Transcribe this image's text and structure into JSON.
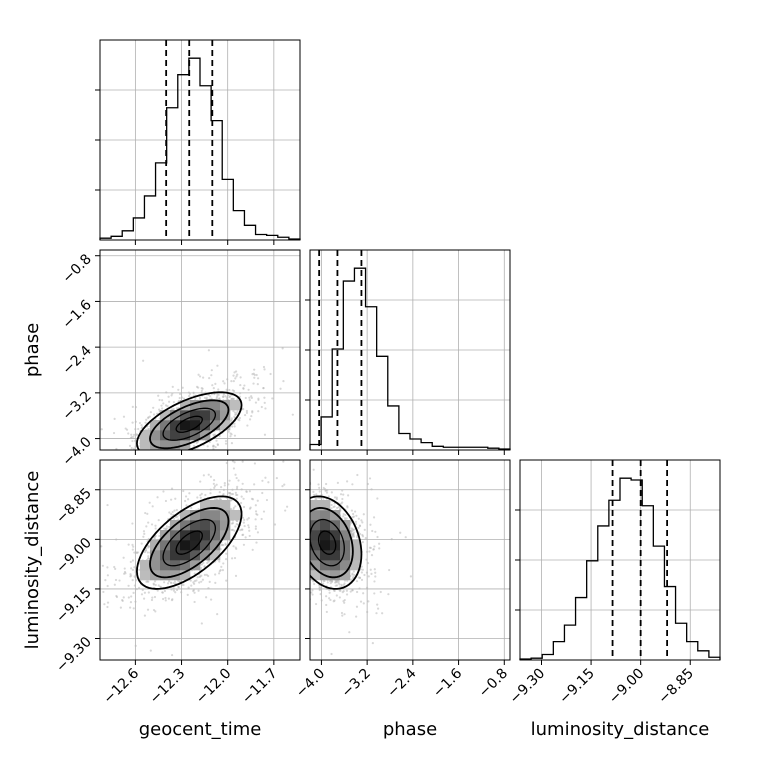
{
  "chart_data": {
    "type": "corner",
    "grid": true,
    "parameters": [
      {
        "name": "geocent_time",
        "range": [
          -12.83,
          -11.53
        ],
        "ticks": [
          -12.6,
          -12.3,
          -12.0,
          -11.7
        ],
        "tick_labels": [
          "−12.6",
          "−12.3",
          "−12.0",
          "−11.7"
        ],
        "quantiles": [
          -12.4,
          -12.25,
          -12.1
        ],
        "histogram": [
          0.01,
          0.02,
          0.05,
          0.12,
          0.24,
          0.42,
          0.72,
          0.9,
          0.99,
          0.84,
          0.65,
          0.33,
          0.16,
          0.08,
          0.03,
          0.025,
          0.015,
          0.005
        ]
      },
      {
        "name": "phase",
        "range": [
          -4.2,
          -0.7
        ],
        "ticks": [
          -4.0,
          -3.2,
          -2.4,
          -1.6,
          -0.8
        ],
        "tick_labels": [
          "−4.0",
          "−3.2",
          "−2.4",
          "−1.6",
          "−0.8"
        ],
        "quantiles": [
          -4.04,
          -3.72,
          -3.3
        ],
        "histogram": [
          0.03,
          0.18,
          0.55,
          0.92,
          0.99,
          0.78,
          0.51,
          0.24,
          0.09,
          0.06,
          0.04,
          0.02,
          0.015,
          0.015,
          0.015,
          0.015,
          0.01,
          0.005
        ]
      },
      {
        "name": "luminosity_distance",
        "range": [
          -9.365,
          -8.76
        ],
        "ticks": [
          -9.3,
          -9.15,
          -9.0,
          -8.85
        ],
        "tick_labels": [
          "−9.30",
          "−9.15",
          "−9.00",
          "−8.85"
        ],
        "quantiles": [
          -9.085,
          -9.0,
          -8.92
        ],
        "histogram": [
          0.005,
          0.01,
          0.03,
          0.1,
          0.19,
          0.34,
          0.54,
          0.73,
          0.87,
          0.99,
          0.98,
          0.84,
          0.62,
          0.4,
          0.2,
          0.1,
          0.05,
          0.015
        ]
      }
    ],
    "pairs": [
      {
        "x": 0,
        "y": 1,
        "mean": [
          -12.25,
          -3.75
        ],
        "std": [
          0.17,
          0.28
        ],
        "corr": 0.6
      },
      {
        "x": 0,
        "y": 2,
        "mean": [
          -12.25,
          -9.01
        ],
        "std": [
          0.17,
          0.07
        ],
        "corr": 0.62
      },
      {
        "x": 1,
        "y": 2,
        "mean": [
          -3.9,
          -9.01
        ],
        "std": [
          0.3,
          0.07
        ],
        "corr": -0.25
      }
    ],
    "contour_levels": [
      0.5,
      1.0,
      1.5,
      2.0
    ],
    "colors": {
      "hist": "#000000",
      "scatter": "#b8b8b8",
      "contour": "#000000",
      "grid": "#b0b0b0"
    }
  }
}
